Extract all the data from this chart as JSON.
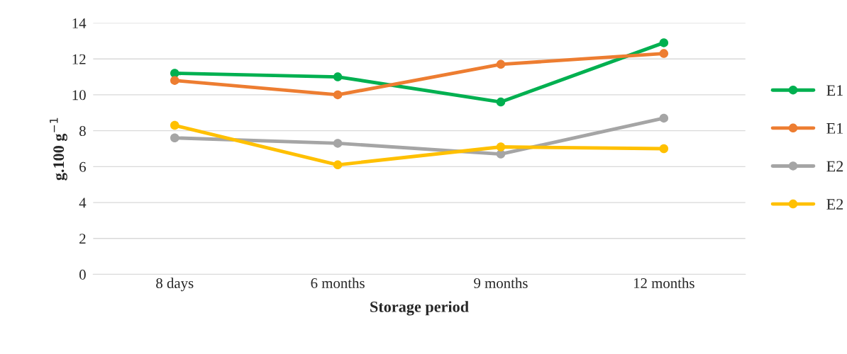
{
  "chart_data": {
    "type": "line",
    "xlabel": "Storage period",
    "ylabel": "g.100 g$^{−1}$",
    "categories": [
      "8 days",
      "6 months",
      "9 months",
      "12 months"
    ],
    "series": [
      {
        "name": "E1",
        "color": "#00b050",
        "values": [
          11.2,
          11.0,
          9.6,
          12.9
        ]
      },
      {
        "name": "E1",
        "color": "#ed7d31",
        "values": [
          10.8,
          10.0,
          11.7,
          12.3
        ]
      },
      {
        "name": "E2",
        "color": "#a5a5a5",
        "values": [
          7.6,
          7.3,
          6.7,
          8.7
        ]
      },
      {
        "name": "E2",
        "color": "#ffc000",
        "values": [
          8.3,
          6.1,
          7.1,
          7.0
        ]
      }
    ],
    "ylim": [
      0,
      14
    ],
    "yticks": [
      0,
      2,
      4,
      6,
      8,
      10,
      12,
      14
    ],
    "grid": "y",
    "legend": "right",
    "marker": "circle",
    "line_style": "solid"
  }
}
